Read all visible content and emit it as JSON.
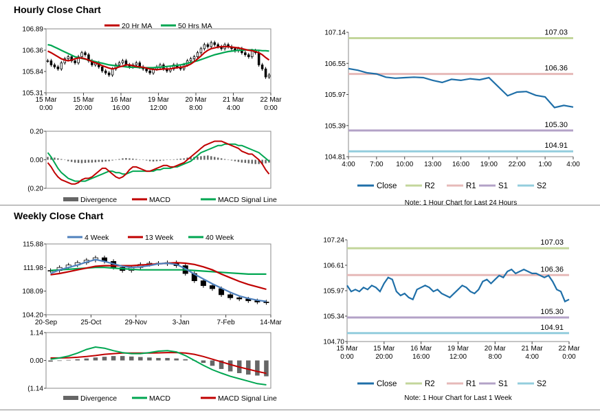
{
  "sections": {
    "hourly": {
      "title": "Hourly Close Chart"
    },
    "weekly": {
      "title": "Weekly Close Chart"
    }
  },
  "colors": {
    "ma_short": "#c00000",
    "ma_long": "#00a651",
    "ma_4wk": "#4f81bd",
    "close": "#1f6fa8",
    "r2": "#c3d69b",
    "r1": "#e6b9b8",
    "s1": "#b3a2c7",
    "s2": "#93cddd",
    "divergence": "#666666"
  },
  "chart_data": [
    {
      "id": "hourly_price",
      "type": "candlestick",
      "legend": [
        {
          "name": "20 Hr MA",
          "color": "#c00000"
        },
        {
          "name": "50 Hrs MA",
          "color": "#00a651"
        }
      ],
      "yticks": [
        "106.89",
        "106.36",
        "105.84",
        "105.31"
      ],
      "ylim": [
        105.31,
        106.89
      ],
      "xticks": [
        [
          "15 Mar",
          "0:00"
        ],
        [
          "15 Mar",
          "20:00"
        ],
        [
          "16 Mar",
          "16:00"
        ],
        [
          "19 Mar",
          "12:00"
        ],
        [
          "20 Mar",
          "8:00"
        ],
        [
          "21 Mar",
          "4:00"
        ],
        [
          "22 Mar",
          "0:00"
        ]
      ],
      "close": [
        106.1,
        106.0,
        105.95,
        105.9,
        106.05,
        106.15,
        106.2,
        106.1,
        106.05,
        106.2,
        106.3,
        106.25,
        106.1,
        106.0,
        106.05,
        105.95,
        105.85,
        105.8,
        105.75,
        105.9,
        106.0,
        106.05,
        106.1,
        106.0,
        105.95,
        106.0,
        106.05,
        105.95,
        105.9,
        105.85,
        105.8,
        105.9,
        105.95,
        106.0,
        105.9,
        105.85,
        105.9,
        106.0,
        105.95,
        105.9,
        106.0,
        106.1,
        106.15,
        106.2,
        106.3,
        106.4,
        106.5,
        106.45,
        106.55,
        106.5,
        106.45,
        106.4,
        106.5,
        106.45,
        106.4,
        106.35,
        106.4,
        106.3,
        106.25,
        106.2,
        106.35,
        106.3,
        106.0,
        105.9,
        105.7,
        105.75
      ],
      "ma20": [
        106.34,
        106.3,
        106.25,
        106.2,
        106.15,
        106.12,
        106.1,
        106.12,
        106.15,
        106.17,
        106.17,
        106.15,
        106.12,
        106.08,
        106.05,
        106.02,
        105.98,
        105.95,
        105.92,
        105.9,
        105.92,
        105.95,
        105.97,
        106.0,
        106.0,
        105.98,
        105.96,
        105.95,
        105.94,
        105.92,
        105.9,
        105.89,
        105.88,
        105.89,
        105.9,
        105.9,
        105.9,
        105.92,
        105.93,
        105.94,
        105.95,
        105.98,
        106.02,
        106.08,
        106.15,
        106.22,
        106.3,
        106.36,
        106.4,
        106.42,
        106.44,
        106.45,
        106.45,
        106.45,
        106.44,
        106.43,
        106.42,
        106.4,
        106.38,
        106.36,
        106.35,
        106.33,
        106.3,
        106.25,
        106.18,
        106.12
      ],
      "ma50": [
        106.5,
        106.48,
        106.44,
        106.4,
        106.36,
        106.32,
        106.28,
        106.24,
        106.2,
        106.18,
        106.16,
        106.14,
        106.12,
        106.1,
        106.08,
        106.06,
        106.04,
        106.02,
        106.0,
        105.99,
        105.98,
        105.97,
        105.96,
        105.95,
        105.94,
        105.94,
        105.94,
        105.93,
        105.93,
        105.93,
        105.93,
        105.93,
        105.94,
        105.94,
        105.95,
        105.96,
        105.97,
        105.98,
        105.99,
        106.0,
        106.02,
        106.04,
        106.06,
        106.08,
        106.1,
        106.13,
        106.16,
        106.19,
        106.22,
        106.25,
        106.27,
        106.29,
        106.31,
        106.33,
        106.34,
        106.35,
        106.36,
        106.36,
        106.37,
        106.37,
        106.37,
        106.36,
        106.36,
        106.35,
        106.35,
        106.34
      ]
    },
    {
      "id": "hourly_macd",
      "type": "line+bar",
      "yticks": [
        "0.20",
        "0.00",
        "(0.20"
      ],
      "ylim": [
        -0.2,
        0.2
      ],
      "legend": [
        {
          "name": "Divergence",
          "kind": "bar"
        },
        {
          "name": "MACD",
          "color": "#c00000"
        },
        {
          "name": "MACD Signal Line",
          "color": "#00a651"
        }
      ],
      "divergence": [
        0.02,
        0.018,
        0.015,
        0.01,
        0.005,
        0.0,
        -0.01,
        -0.015,
        -0.02,
        -0.022,
        -0.024,
        -0.022,
        -0.02,
        -0.02,
        -0.018,
        -0.015,
        -0.015,
        -0.012,
        -0.01,
        -0.005,
        0.0,
        0.005,
        0.01,
        0.012,
        0.01,
        0.008,
        0.005,
        0.002,
        0.0,
        -0.005,
        -0.01,
        -0.012,
        -0.01,
        -0.008,
        -0.005,
        -0.002,
        0.0,
        0.003,
        0.005,
        0.008,
        0.01,
        0.015,
        0.018,
        0.02,
        0.022,
        0.025,
        0.028,
        0.03,
        0.025,
        0.02,
        0.015,
        0.01,
        0.005,
        0.0,
        -0.005,
        -0.01,
        -0.015,
        -0.02,
        -0.022,
        -0.025,
        -0.028,
        -0.03,
        -0.03,
        -0.028,
        -0.025,
        -0.02
      ],
      "macd": [
        -0.02,
        -0.05,
        -0.09,
        -0.12,
        -0.14,
        -0.15,
        -0.16,
        -0.17,
        -0.17,
        -0.16,
        -0.14,
        -0.13,
        -0.13,
        -0.12,
        -0.1,
        -0.08,
        -0.06,
        -0.06,
        -0.08,
        -0.1,
        -0.12,
        -0.13,
        -0.12,
        -0.1,
        -0.07,
        -0.05,
        -0.05,
        -0.06,
        -0.07,
        -0.08,
        -0.08,
        -0.07,
        -0.06,
        -0.05,
        -0.04,
        -0.04,
        -0.05,
        -0.05,
        -0.04,
        -0.03,
        -0.02,
        0.0,
        0.02,
        0.04,
        0.06,
        0.08,
        0.1,
        0.11,
        0.12,
        0.13,
        0.13,
        0.13,
        0.12,
        0.11,
        0.1,
        0.09,
        0.08,
        0.06,
        0.05,
        0.04,
        0.04,
        0.02,
        0.0,
        -0.03,
        -0.07,
        -0.1
      ],
      "signal": [
        0.05,
        0.02,
        -0.02,
        -0.06,
        -0.09,
        -0.11,
        -0.13,
        -0.14,
        -0.15,
        -0.15,
        -0.15,
        -0.15,
        -0.14,
        -0.13,
        -0.12,
        -0.11,
        -0.1,
        -0.09,
        -0.08,
        -0.08,
        -0.09,
        -0.09,
        -0.1,
        -0.1,
        -0.09,
        -0.08,
        -0.08,
        -0.08,
        -0.08,
        -0.08,
        -0.08,
        -0.08,
        -0.07,
        -0.07,
        -0.06,
        -0.06,
        -0.06,
        -0.05,
        -0.05,
        -0.04,
        -0.03,
        -0.02,
        -0.01,
        0.01,
        0.03,
        0.05,
        0.06,
        0.07,
        0.08,
        0.09,
        0.1,
        0.1,
        0.11,
        0.11,
        0.11,
        0.11,
        0.1,
        0.1,
        0.09,
        0.08,
        0.07,
        0.06,
        0.05,
        0.03,
        0.01,
        -0.01
      ]
    },
    {
      "id": "hourly_levels",
      "type": "line",
      "yticks": [
        "107.14",
        "106.55",
        "105.97",
        "105.39",
        "104.81"
      ],
      "ylim": [
        104.81,
        107.14
      ],
      "xticks": [
        "4:00",
        "7:00",
        "10:00",
        "13:00",
        "16:00",
        "19:00",
        "22:00",
        "1:00",
        "4:00"
      ],
      "x": [
        0,
        1,
        2,
        3,
        4,
        5,
        6,
        7,
        8,
        9,
        10,
        11,
        12,
        13,
        14,
        15,
        16,
        17,
        18,
        19,
        20,
        21,
        22,
        23,
        24
      ],
      "close": [
        106.46,
        106.43,
        106.38,
        106.36,
        106.3,
        106.28,
        106.29,
        106.3,
        106.29,
        106.24,
        106.2,
        106.26,
        106.24,
        106.27,
        106.25,
        106.29,
        106.12,
        105.95,
        106.02,
        106.03,
        105.96,
        105.93,
        105.73,
        105.77,
        105.74
      ],
      "levels": [
        {
          "name": "R2",
          "value": 107.03,
          "label": "107.03"
        },
        {
          "name": "R1",
          "value": 106.36,
          "label": "106.36"
        },
        {
          "name": "S1",
          "value": 105.3,
          "label": "105.30"
        },
        {
          "name": "S2",
          "value": 104.91,
          "label": "104.91"
        }
      ],
      "legend": [
        "Close",
        "R2",
        "R1",
        "S1",
        "S2"
      ],
      "note": "Note: 1 Hour Chart for Last 24 Hours"
    },
    {
      "id": "weekly_price",
      "type": "candlestick",
      "legend": [
        {
          "name": "4 Week",
          "color": "#4f81bd"
        },
        {
          "name": "13 Week",
          "color": "#c00000"
        },
        {
          "name": "40 Week",
          "color": "#00a651"
        }
      ],
      "yticks": [
        "115.88",
        "111.98",
        "108.09",
        "104.20"
      ],
      "ylim": [
        104.2,
        115.88
      ],
      "xticks": [
        "20-Sep",
        "25-Oct",
        "29-Nov",
        "3-Jan",
        "7-Feb",
        "14-Mar"
      ],
      "close": [
        111.5,
        112.0,
        112.4,
        112.8,
        113.2,
        113.6,
        113.0,
        112.0,
        111.5,
        112.0,
        112.5,
        112.7,
        112.6,
        112.8,
        112.3,
        111.0,
        109.8,
        109.0,
        108.5,
        107.5,
        107.0,
        106.8,
        106.5,
        106.3,
        106.2
      ],
      "ma4": [
        111.0,
        111.6,
        112.0,
        112.4,
        112.9,
        113.3,
        113.0,
        112.6,
        112.2,
        112.0,
        112.1,
        112.3,
        112.6,
        112.7,
        112.5,
        111.8,
        110.9,
        110.1,
        109.3,
        108.6,
        107.9,
        107.3,
        106.9,
        106.6,
        106.4
      ],
      "ma13": [
        110.8,
        111.0,
        111.3,
        111.6,
        111.9,
        112.2,
        112.3,
        112.3,
        112.3,
        112.3,
        112.4,
        112.5,
        112.6,
        112.7,
        112.8,
        112.7,
        112.5,
        112.1,
        111.6,
        110.9,
        110.3,
        109.7,
        109.2,
        108.8,
        108.4
      ],
      "ma40": [
        111.5,
        111.6,
        111.7,
        111.8,
        111.9,
        112.0,
        112.0,
        111.9,
        111.8,
        111.7,
        111.6,
        111.6,
        111.6,
        111.6,
        111.6,
        111.6,
        111.5,
        111.4,
        111.3,
        111.2,
        111.1,
        111.0,
        110.9,
        110.9,
        110.9
      ]
    },
    {
      "id": "weekly_macd",
      "type": "line+bar",
      "yticks": [
        "1.14",
        "0.00",
        "(1.14"
      ],
      "ylim": [
        -1.14,
        1.14
      ],
      "legend": [
        {
          "name": "Divergence",
          "kind": "bar"
        },
        {
          "name": "MACD",
          "color": "#00a651"
        },
        {
          "name": "MACD Signal Line",
          "color": "#c00000"
        }
      ],
      "divergence": [
        -0.05,
        -0.02,
        0.02,
        0.05,
        0.08,
        0.12,
        0.15,
        0.18,
        0.18,
        0.16,
        0.14,
        0.12,
        0.1,
        0.1,
        0.08,
        0.05,
        0.0,
        -0.1,
        -0.22,
        -0.35,
        -0.45,
        -0.52,
        -0.58,
        -0.62,
        -0.65
      ],
      "macd": [
        0.05,
        0.1,
        0.18,
        0.3,
        0.45,
        0.55,
        0.5,
        0.4,
        0.32,
        0.28,
        0.28,
        0.32,
        0.38,
        0.4,
        0.35,
        0.2,
        0.0,
        -0.2,
        -0.38,
        -0.52,
        -0.65,
        -0.75,
        -0.85,
        -0.95,
        -1.0
      ],
      "signal": [
        0.1,
        0.1,
        0.11,
        0.13,
        0.16,
        0.2,
        0.25,
        0.28,
        0.3,
        0.3,
        0.3,
        0.3,
        0.31,
        0.32,
        0.32,
        0.3,
        0.25,
        0.16,
        0.05,
        -0.06,
        -0.17,
        -0.27,
        -0.36,
        -0.45,
        -0.53
      ]
    },
    {
      "id": "weekly_levels",
      "type": "line",
      "yticks": [
        "107.24",
        "106.61",
        "105.97",
        "105.34",
        "104.70"
      ],
      "ylim": [
        104.7,
        107.24
      ],
      "xticks": [
        [
          "15 Mar",
          "0:00"
        ],
        [
          "15 Mar",
          "20:00"
        ],
        [
          "16 Mar",
          "16:00"
        ],
        [
          "19 Mar",
          "12:00"
        ],
        [
          "20 Mar",
          "8:00"
        ],
        [
          "21 Mar",
          "4:00"
        ],
        [
          "22 Mar",
          "0:00"
        ]
      ],
      "close": [
        106.1,
        105.95,
        106.0,
        105.95,
        106.05,
        106.0,
        106.1,
        106.05,
        105.95,
        106.15,
        106.3,
        106.25,
        105.95,
        105.85,
        105.9,
        105.8,
        105.75,
        106.0,
        106.05,
        106.1,
        106.05,
        105.95,
        106.0,
        105.9,
        105.85,
        105.8,
        105.9,
        106.0,
        106.1,
        106.05,
        105.95,
        105.9,
        106.0,
        106.2,
        106.25,
        106.15,
        106.25,
        106.35,
        106.3,
        106.45,
        106.5,
        106.4,
        106.45,
        106.5,
        106.45,
        106.4,
        106.4,
        106.35,
        106.3,
        106.35,
        106.2,
        106.0,
        105.95,
        105.7,
        105.75
      ],
      "levels": [
        {
          "name": "R2",
          "value": 107.03,
          "label": "107.03"
        },
        {
          "name": "R1",
          "value": 106.36,
          "label": "106.36"
        },
        {
          "name": "S1",
          "value": 105.3,
          "label": "105.30"
        },
        {
          "name": "S2",
          "value": 104.91,
          "label": "104.91"
        }
      ],
      "legend": [
        "Close",
        "R2",
        "R1",
        "S1",
        "S2"
      ],
      "note": "Note: 1 Hour Chart for Last 1 Week"
    }
  ]
}
